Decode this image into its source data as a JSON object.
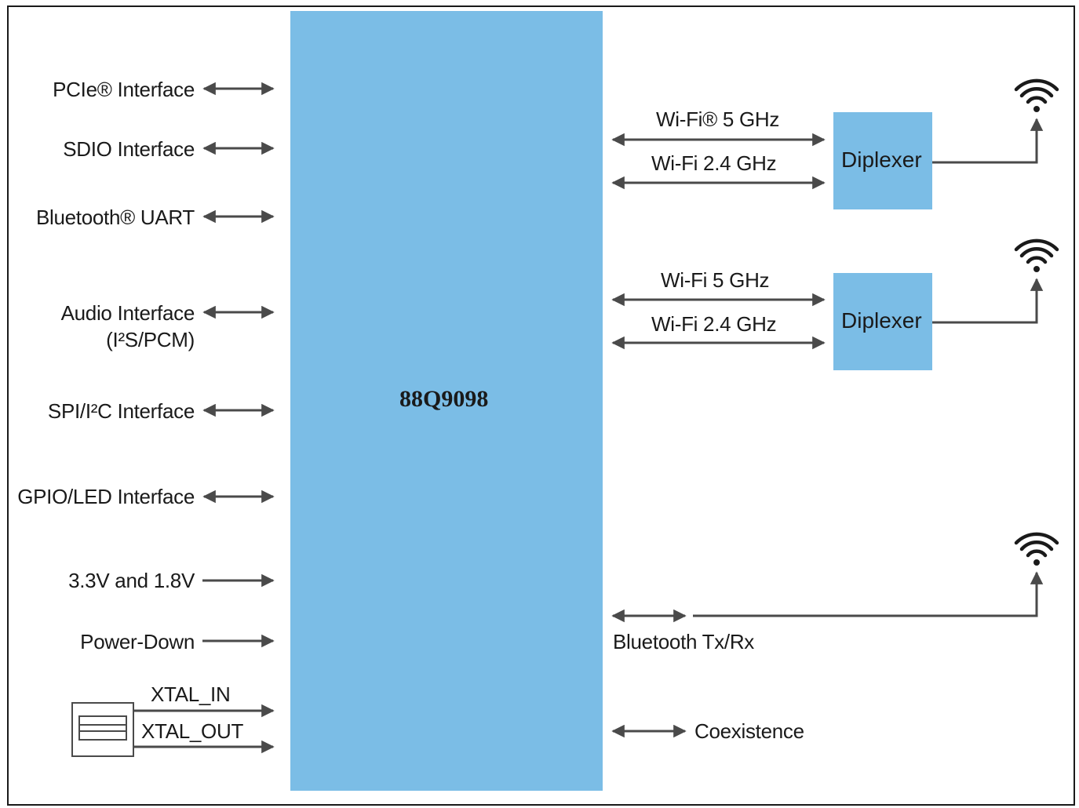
{
  "chip": {
    "name": "88Q9098"
  },
  "left_interfaces": [
    {
      "label": "PCIe® Interface",
      "direction": "bidirectional"
    },
    {
      "label": "SDIO Interface",
      "direction": "bidirectional"
    },
    {
      "label": "Bluetooth® UART",
      "direction": "bidirectional"
    },
    {
      "label": "Audio Interface",
      "sublabel": "(I²S/PCM)",
      "direction": "bidirectional"
    },
    {
      "label": "SPI/I²C Interface",
      "direction": "bidirectional"
    },
    {
      "label": "GPIO/LED Interface",
      "direction": "bidirectional"
    },
    {
      "label": "3.3V and 1.8V",
      "direction": "in"
    },
    {
      "label": "Power-Down",
      "direction": "in"
    }
  ],
  "crystal": {
    "xtal_in": "XTAL_IN",
    "xtal_out": "XTAL_OUT"
  },
  "radio_groups": [
    {
      "band_a": "Wi-Fi® 5 GHz",
      "band_b": "Wi-Fi 2.4 GHz",
      "block": "Diplexer"
    },
    {
      "band_a": "Wi-Fi 5 GHz",
      "band_b": "Wi-Fi 2.4 GHz",
      "block": "Diplexer"
    }
  ],
  "bluetooth": {
    "label": "Bluetooth Tx/Rx"
  },
  "coexistence": {
    "label": "Coexistence"
  },
  "icons": [
    "antenna-icon",
    "crystal-oscillator-icon"
  ],
  "colors": {
    "chip": "#7bbde6",
    "diplexer": "#7bbde6",
    "line": "#4a4a4a",
    "text": "#1a1a1a"
  }
}
